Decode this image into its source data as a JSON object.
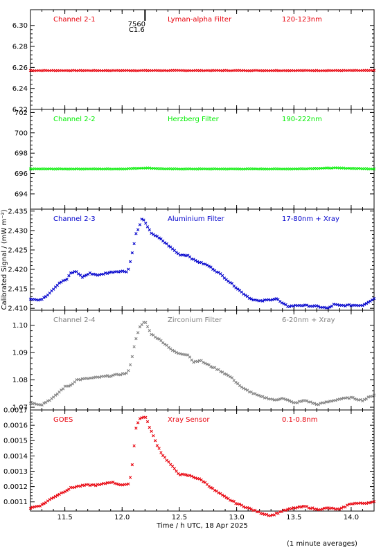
{
  "xlabel": "Time / h UTC, 18 Apr 2025",
  "ylabel": "Calibrated Signal / (mW m⁻²)",
  "footnote": "(1 minute averages)",
  "flare_marker": {
    "x": 12.2,
    "label_top": "7560",
    "label_bottom": "C1.6"
  },
  "xlim": [
    11.2,
    14.2
  ],
  "xticks": [
    "11.5",
    "12.0",
    "12.5",
    "13.0",
    "13.5",
    "14.0"
  ],
  "colors": {
    "red": "#e8000b",
    "green": "#00ee00",
    "blue": "#0000cc",
    "gray": "#808080"
  },
  "chart_data": [
    {
      "type": "scatter",
      "channel": "Channel 2-1",
      "filter": "Lyman-alpha Filter",
      "band": "120-123nm",
      "color": "#e8000b",
      "ylim": [
        6.22,
        6.315
      ],
      "yticks": [
        "6.22",
        "6.24",
        "6.26",
        "6.28",
        "6.30"
      ],
      "x": [
        11.2,
        14.2
      ],
      "y": [
        6.257,
        6.257
      ]
    },
    {
      "type": "scatter",
      "channel": "Channel 2-2",
      "filter": "Herzberg Filter",
      "band": "190-222nm",
      "color": "#00ee00",
      "ylim": [
        692.5,
        702.3
      ],
      "yticks": [
        "694",
        "696",
        "698",
        "700",
        "702"
      ],
      "x": [
        11.2,
        12.0,
        12.2,
        12.4,
        13.5,
        13.85,
        14.2
      ],
      "y": [
        696.45,
        696.45,
        696.55,
        696.45,
        696.45,
        696.55,
        696.45
      ]
    },
    {
      "type": "scatter",
      "channel": "Channel 2-3",
      "filter": "Aluminium Filter",
      "band": "17-80nm + Xray",
      "color": "#0000cc",
      "ylim": [
        2.4095,
        2.4355
      ],
      "yticks": [
        "2.410",
        "2.415",
        "2.420",
        "2.425",
        "2.430",
        "2.435"
      ],
      "x": [
        11.2,
        11.28,
        11.35,
        11.45,
        11.52,
        11.55,
        11.6,
        11.65,
        11.72,
        11.8,
        11.85,
        11.95,
        12.05,
        12.08,
        12.12,
        12.15,
        12.18,
        12.2,
        12.25,
        12.35,
        12.45,
        12.5,
        12.58,
        12.62,
        12.68,
        12.75,
        12.85,
        12.95,
        13.05,
        13.12,
        13.2,
        13.35,
        13.4,
        13.45,
        13.55,
        13.7,
        13.8,
        13.85,
        13.9,
        14.0,
        14.1,
        14.2
      ],
      "y": [
        2.4125,
        2.412,
        2.4135,
        2.4165,
        2.4175,
        2.419,
        2.4195,
        2.418,
        2.419,
        2.4185,
        2.419,
        2.4195,
        2.4195,
        2.423,
        2.429,
        2.431,
        2.4335,
        2.432,
        2.4295,
        2.4275,
        2.425,
        2.4238,
        2.4236,
        2.4225,
        2.4218,
        2.421,
        2.419,
        2.4165,
        2.414,
        2.4125,
        2.4118,
        2.4125,
        2.4112,
        2.4105,
        2.4108,
        2.4105,
        2.41,
        2.411,
        2.4107,
        2.4108,
        2.4108,
        2.4125
      ]
    },
    {
      "type": "scatter",
      "channel": "Channel 2-4",
      "filter": "Zirconium Filter",
      "band": "6-20nm + Xray",
      "color": "#808080",
      "ylim": [
        1.069,
        1.1055
      ],
      "yticks": [
        "1.07",
        "1.08",
        "1.09",
        "1.10"
      ],
      "x": [
        11.2,
        11.3,
        11.4,
        11.5,
        11.55,
        11.6,
        11.7,
        11.8,
        11.9,
        12.05,
        12.08,
        12.12,
        12.15,
        12.2,
        12.25,
        12.35,
        12.45,
        12.5,
        12.58,
        12.62,
        12.68,
        12.75,
        12.85,
        12.95,
        13.05,
        13.1,
        13.2,
        13.35,
        13.4,
        13.5,
        13.6,
        13.7,
        13.8,
        13.9,
        14.0,
        14.1,
        14.2
      ],
      "y": [
        1.0715,
        1.071,
        1.0735,
        1.0775,
        1.078,
        1.08,
        1.0805,
        1.081,
        1.0815,
        1.0825,
        1.087,
        1.095,
        1.099,
        1.1015,
        1.097,
        1.094,
        1.0905,
        1.0895,
        1.0893,
        1.0865,
        1.0872,
        1.0855,
        1.0835,
        1.081,
        1.077,
        1.076,
        1.074,
        1.0725,
        1.0735,
        1.0715,
        1.0725,
        1.071,
        1.072,
        1.073,
        1.0735,
        1.0725,
        1.0745
      ]
    },
    {
      "type": "scatter",
      "channel": "GOES",
      "filter": "Xray Sensor",
      "band": "0.1-0.8nm",
      "color": "#e8000b",
      "ylim": [
        0.00104,
        0.0017
      ],
      "yticks": [
        "0.0011",
        "0.0012",
        "0.0013",
        "0.0014",
        "0.0015",
        "0.0016",
        "0.0017"
      ],
      "x": [
        11.2,
        11.3,
        11.4,
        11.5,
        11.55,
        11.6,
        11.7,
        11.8,
        11.9,
        12.0,
        12.05,
        12.08,
        12.12,
        12.15,
        12.2,
        12.25,
        12.3,
        12.35,
        12.45,
        12.5,
        12.6,
        12.7,
        12.8,
        12.9,
        13.0,
        13.1,
        13.2,
        13.3,
        13.4,
        13.5,
        13.6,
        13.7,
        13.8,
        13.9,
        14.0,
        14.1,
        14.2
      ],
      "y": [
        0.00106,
        0.00108,
        0.00113,
        0.00117,
        0.00119,
        0.0012,
        0.00121,
        0.00121,
        0.00123,
        0.00121,
        0.00121,
        0.00128,
        0.00158,
        0.00164,
        0.00166,
        0.00157,
        0.00148,
        0.00141,
        0.00132,
        0.00128,
        0.00127,
        0.00124,
        0.00118,
        0.00113,
        0.00109,
        0.00106,
        0.00103,
        0.00101,
        0.00104,
        0.00106,
        0.00107,
        0.00105,
        0.00106,
        0.00105,
        0.00109,
        0.00109,
        0.0011
      ]
    }
  ]
}
